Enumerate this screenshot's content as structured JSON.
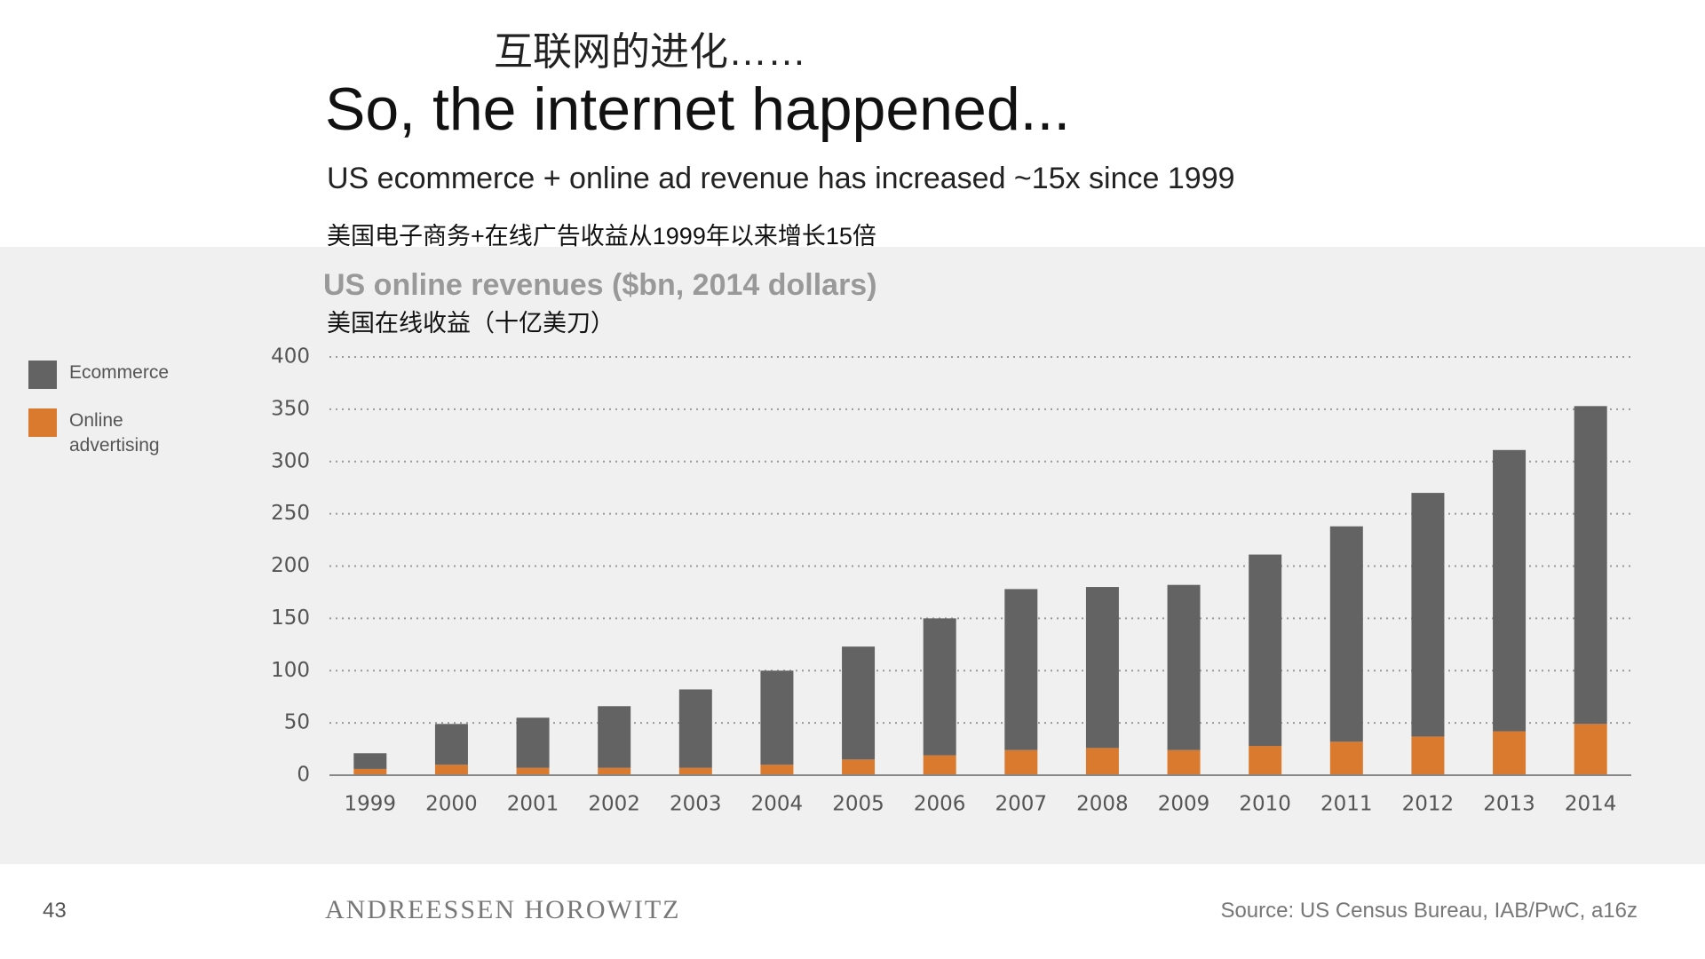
{
  "slide": {
    "title_cn": "互联网的进化……",
    "title": "So, the internet happened...",
    "subtitle": "US ecommerce + online ad revenue has increased ~15x since 1999",
    "subtitle_cn": "美国电子商务+在线广告收益从1999年以来增长15倍",
    "page_number": "43",
    "brand": "ANDREESSEN HOROWITZ",
    "source": "Source: US Census Bureau, IAB/PwC, a16z"
  },
  "chart_data": {
    "type": "stacked_bar",
    "title": "US online revenues ($bn, 2014 dollars)",
    "title_cn": "美国在线收益（十亿美刀）",
    "categories": [
      "1999",
      "2000",
      "2001",
      "2002",
      "2003",
      "2004",
      "2005",
      "2006",
      "2007",
      "2008",
      "2009",
      "2010",
      "2011",
      "2012",
      "2013",
      "2014"
    ],
    "series": [
      {
        "name": "Online advertising",
        "color": "#d97a2f",
        "values": [
          6,
          10,
          7,
          7,
          7,
          10,
          15,
          19,
          24,
          26,
          24,
          28,
          32,
          37,
          42,
          49
        ]
      },
      {
        "name": "Ecommerce",
        "color": "#636363",
        "values": [
          15,
          39,
          48,
          59,
          75,
          90,
          108,
          131,
          154,
          154,
          158,
          183,
          206,
          233,
          269,
          304
        ]
      }
    ],
    "ylim": [
      0,
      400
    ],
    "yticks": [
      0,
      50,
      100,
      150,
      200,
      250,
      300,
      350,
      400
    ],
    "grid": true
  }
}
